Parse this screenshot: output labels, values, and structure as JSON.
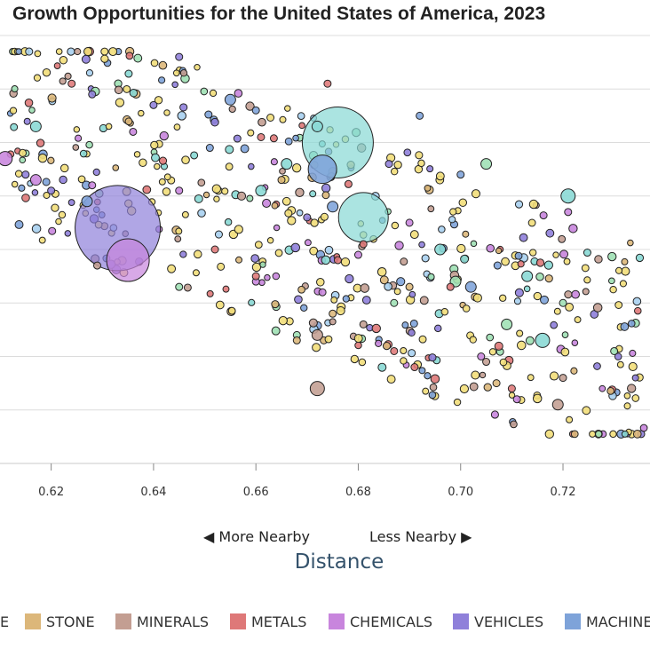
{
  "chart_data": {
    "type": "scatter",
    "title": "Growth Opportunities for the United States of America, 2023",
    "xlabel": "Distance",
    "ylabel": "",
    "x_ticks": [
      0.62,
      0.64,
      0.66,
      0.68,
      0.7,
      0.72
    ],
    "xlim": [
      0.61,
      0.737
    ],
    "ylim": [
      0,
      8
    ],
    "grid": true,
    "nav": {
      "left": "◀ More Nearby",
      "right": "Less Nearby ▶"
    },
    "legend_position": "bottom",
    "legend": [
      {
        "key": "partial",
        "label": "E"
      },
      {
        "key": "stone",
        "label": "STONE"
      },
      {
        "key": "minerals",
        "label": "MINERALS"
      },
      {
        "key": "metals",
        "label": "METALS"
      },
      {
        "key": "chemicals",
        "label": "CHEMICALS"
      },
      {
        "key": "vehicles",
        "label": "VEHICLES"
      },
      {
        "key": "machinery",
        "label": "MACHINE"
      }
    ],
    "colors": {
      "partial": "#f2de7a",
      "stone": "#dcb77a",
      "minerals": "#c39e92",
      "metals": "#de7878",
      "chemicals": "#c885dd",
      "vehicles": "#8f80da",
      "machinery": "#7ea3d9",
      "agriculture": "#f2de7a",
      "electronics": "#88d8d4",
      "textiles": "#9ee0b4",
      "services": "#a8d0f0"
    },
    "series": [
      {
        "category": "vehicles",
        "points": [
          [
            0.633,
            4.4,
            12
          ],
          [
            0.62,
            5.1,
            1
          ],
          [
            0.615,
            5.4,
            1
          ],
          [
            0.628,
            6.9,
            1
          ],
          [
            0.64,
            6.7,
            1
          ],
          [
            0.645,
            7.6,
            1
          ],
          [
            0.67,
            4.6,
            1
          ],
          [
            0.686,
            5.6,
            1
          ]
        ]
      },
      {
        "category": "chemicals",
        "points": [
          [
            0.635,
            3.8,
            6
          ],
          [
            0.611,
            5.7,
            2
          ],
          [
            0.617,
            5.3,
            1.5
          ],
          [
            0.628,
            5.2,
            1
          ],
          [
            0.636,
            6.2,
            1
          ],
          [
            0.673,
            3.2,
            1
          ],
          [
            0.66,
            3.4,
            1
          ],
          [
            0.704,
            2.0,
            1
          ],
          [
            0.711,
            1.2,
            1
          ],
          [
            0.721,
            4.7,
            1
          ],
          [
            0.69,
            4.5,
            1
          ],
          [
            0.68,
            3.9,
            1
          ],
          [
            0.645,
            5.1,
            1
          ]
        ]
      },
      {
        "category": "electronics",
        "points": [
          [
            0.676,
            6.0,
            10
          ],
          [
            0.681,
            4.6,
            7
          ],
          [
            0.617,
            6.3,
            1.5
          ],
          [
            0.666,
            5.6,
            1.5
          ],
          [
            0.696,
            4.0,
            1.5
          ],
          [
            0.716,
            2.3,
            2
          ],
          [
            0.721,
            5.0,
            2
          ],
          [
            0.661,
            5.1,
            1.5
          ],
          [
            0.672,
            6.3,
            1.5
          ],
          [
            0.713,
            3.5,
            1.5
          ]
        ]
      },
      {
        "category": "machinery",
        "points": [
          [
            0.673,
            5.5,
            4
          ],
          [
            0.655,
            6.8,
            1.5
          ],
          [
            0.627,
            4.9,
            1.5
          ],
          [
            0.675,
            4.8,
            1.5
          ],
          [
            0.702,
            3.3,
            1.5
          ],
          [
            0.651,
            5.9,
            1
          ],
          [
            0.66,
            6.6,
            1
          ],
          [
            0.692,
            6.5,
            1
          ],
          [
            0.7,
            5.4,
            1
          ]
        ]
      },
      {
        "category": "textiles",
        "points": [
          [
            0.699,
            3.4,
            1.5
          ],
          [
            0.709,
            2.6,
            1.5
          ],
          [
            0.705,
            5.6,
            1.5
          ],
          [
            0.668,
            2.4,
            1
          ],
          [
            0.645,
            3.3,
            1
          ],
          [
            0.687,
            3.0,
            1
          ],
          [
            0.72,
            3.0,
            1
          ],
          [
            0.73,
            2.1,
            1
          ]
        ]
      },
      {
        "category": "minerals",
        "points": [
          [
            0.672,
            1.4,
            2
          ],
          [
            0.672,
            2.4,
            1.5
          ],
          [
            0.719,
            1.1,
            1.5
          ],
          [
            0.629,
            3.7,
            1
          ],
          [
            0.681,
            2.6,
            1
          ],
          [
            0.705,
            1.9,
            1
          ],
          [
            0.72,
            1.6,
            1
          ]
        ]
      },
      {
        "category": "metals",
        "points": [
          [
            0.624,
            7.1,
            1
          ],
          [
            0.674,
            7.1,
            1
          ],
          [
            0.681,
            4.1,
            1
          ],
          [
            0.691,
            1.8,
            1
          ],
          [
            0.71,
            1.4,
            1
          ],
          [
            0.698,
            3.3,
            1
          ],
          [
            0.652,
            4.0,
            1
          ],
          [
            0.661,
            6.1,
            1
          ],
          [
            0.676,
            3.8,
            1
          ],
          [
            0.687,
            2.1,
            1
          ],
          [
            0.66,
            3.5,
            1
          ]
        ]
      },
      {
        "category": "stone",
        "points": [
          [
            0.668,
            2.3,
            1
          ],
          [
            0.675,
            2.8,
            1
          ],
          [
            0.665,
            5.3,
            1
          ],
          [
            0.69,
            3.3,
            1
          ],
          [
            0.707,
            1.5,
            1
          ]
        ]
      }
    ]
  }
}
